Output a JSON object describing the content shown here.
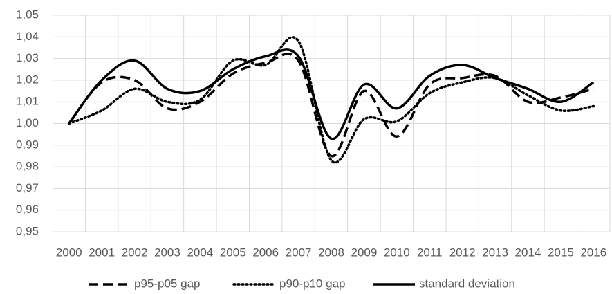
{
  "chart_data": {
    "type": "line",
    "categories": [
      "2000",
      "2001",
      "2002",
      "2003",
      "2004",
      "2005",
      "2006",
      "2007",
      "2008",
      "2009",
      "2010",
      "2011",
      "2012",
      "2013",
      "2014",
      "2015",
      "2016"
    ],
    "series": [
      {
        "name": "p95-p05 gap",
        "color": "#000000",
        "dash": "dashed",
        "values": [
          1.0,
          1.019,
          1.02,
          1.007,
          1.01,
          1.023,
          1.028,
          1.029,
          0.985,
          1.015,
          0.994,
          1.018,
          1.021,
          1.022,
          1.01,
          1.012,
          1.016
        ]
      },
      {
        "name": "p90-p10 gap",
        "color": "#000000",
        "dash": "dotted",
        "values": [
          1.0,
          1.006,
          1.016,
          1.01,
          1.011,
          1.029,
          1.027,
          1.038,
          0.983,
          1.002,
          1.001,
          1.014,
          1.019,
          1.021,
          1.013,
          1.006,
          1.008
        ]
      },
      {
        "name": "standard deviation",
        "color": "#000000",
        "dash": "solid",
        "values": [
          1.0,
          1.02,
          1.029,
          1.016,
          1.015,
          1.025,
          1.031,
          1.031,
          0.993,
          1.018,
          1.007,
          1.022,
          1.027,
          1.021,
          1.016,
          1.01,
          1.019
        ]
      }
    ],
    "ylim": [
      0.95,
      1.05
    ],
    "yticks": [
      {
        "value": 0.95,
        "label": "0,95"
      },
      {
        "value": 0.96,
        "label": "0,96"
      },
      {
        "value": 0.97,
        "label": "0,97"
      },
      {
        "value": 0.98,
        "label": "0,98"
      },
      {
        "value": 0.99,
        "label": "0,99"
      },
      {
        "value": 1.0,
        "label": "1,00"
      },
      {
        "value": 1.01,
        "label": "1,01"
      },
      {
        "value": 1.02,
        "label": "1,02"
      },
      {
        "value": 1.03,
        "label": "1,03"
      },
      {
        "value": 1.04,
        "label": "1,04"
      },
      {
        "value": 1.05,
        "label": "1,05"
      }
    ],
    "grid": true,
    "smooth": true,
    "legend": "bottom"
  }
}
